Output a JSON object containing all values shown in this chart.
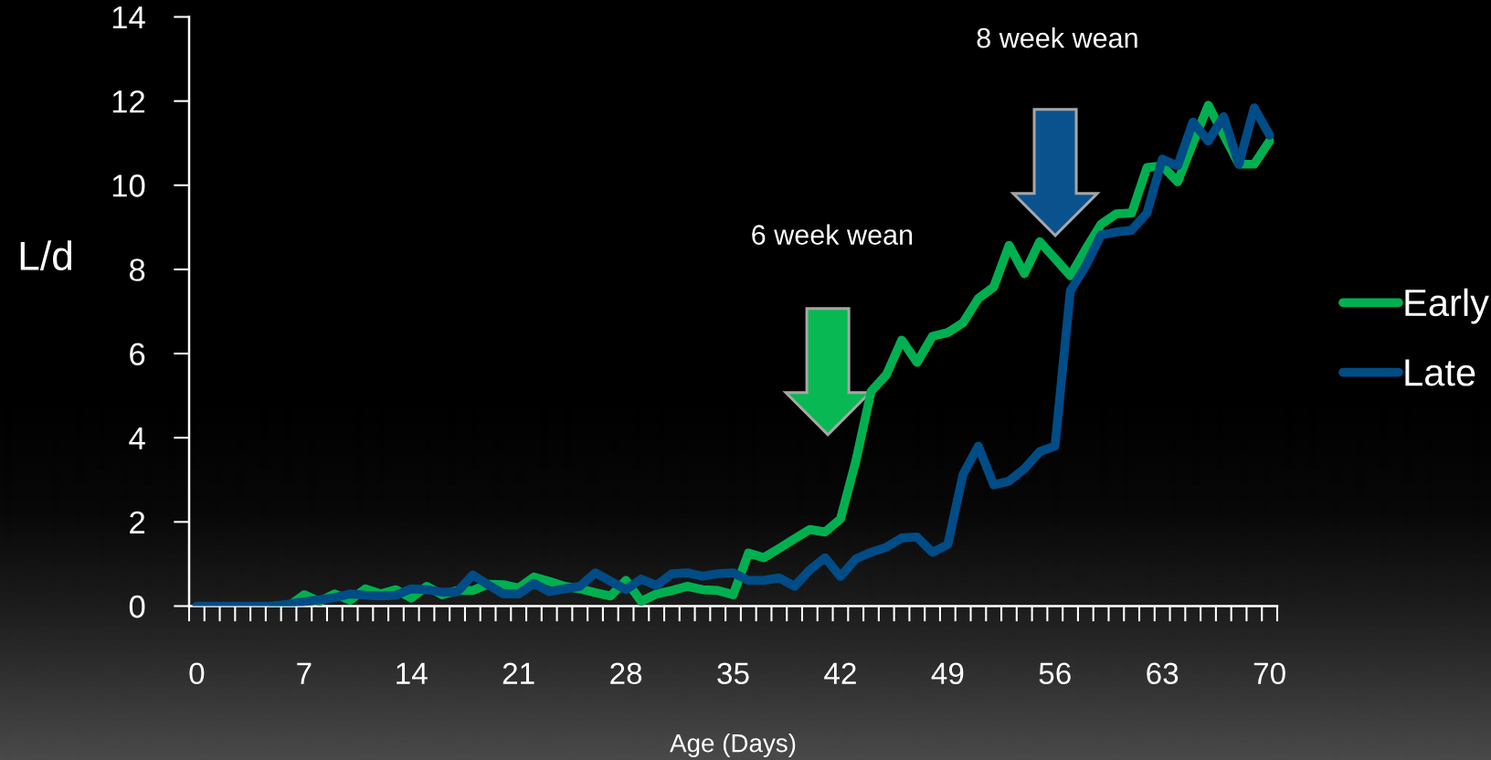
{
  "chart_data": {
    "type": "line",
    "categories": [
      "0",
      null,
      null,
      null,
      null,
      null,
      null,
      "7",
      null,
      null,
      null,
      null,
      null,
      null,
      "14",
      null,
      null,
      null,
      null,
      null,
      null,
      "21",
      null,
      null,
      null,
      null,
      null,
      null,
      "28",
      null,
      null,
      null,
      null,
      null,
      null,
      "35",
      null,
      null,
      null,
      null,
      null,
      null,
      "42",
      null,
      null,
      null,
      null,
      null,
      null,
      "49",
      null,
      null,
      null,
      null,
      null,
      null,
      "56",
      null,
      null,
      null,
      null,
      null,
      null,
      "63",
      null,
      null,
      null,
      null,
      null,
      null,
      "70"
    ],
    "series": [
      {
        "name": "Early",
        "color": "#00b050",
        "values": [
          null,
          null,
          null,
          null,
          null,
          0,
          0,
          0.27,
          0.11,
          0.29,
          0.14,
          0.41,
          0.29,
          0.39,
          0.19,
          0.47,
          0.27,
          0.37,
          0.37,
          0.52,
          0.51,
          0.43,
          0.69,
          0.59,
          0.47,
          0.41,
          0.32,
          0.24,
          0.61,
          0.11,
          0.29,
          0.37,
          0.47,
          0.39,
          0.37,
          0.27,
          1.26,
          1.15,
          1.37,
          1.6,
          1.82,
          1.76,
          2.07,
          3.44,
          5.1,
          5.5,
          6.32,
          5.79,
          6.41,
          6.5,
          6.73,
          7.31,
          7.58,
          8.57,
          7.9,
          8.66,
          8.26,
          7.85,
          8.48,
          9.07,
          9.32,
          9.34,
          10.42,
          10.46,
          10.08,
          11.0,
          11.9,
          11.2,
          10.5,
          10.5,
          11.05
        ]
      },
      {
        "name": "Late",
        "color": "#004c86",
        "values": [
          0,
          0,
          0,
          0,
          0,
          0,
          0.05,
          0.1,
          0.15,
          0.2,
          0.29,
          0.26,
          0.24,
          0.26,
          0.41,
          0.39,
          0.33,
          0.34,
          0.74,
          0.51,
          0.29,
          0.29,
          0.54,
          0.34,
          0.41,
          0.47,
          0.79,
          0.59,
          0.39,
          0.64,
          0.49,
          0.77,
          0.79,
          0.71,
          0.77,
          0.79,
          0.61,
          0.61,
          0.67,
          0.47,
          0.86,
          1.15,
          0.7,
          1.12,
          1.28,
          1.4,
          1.62,
          1.64,
          1.28,
          1.46,
          3.13,
          3.8,
          2.88,
          2.97,
          3.26,
          3.67,
          3.8,
          7.49,
          8.08,
          8.82,
          8.89,
          8.93,
          9.34,
          10.62,
          10.46,
          11.5,
          11.05,
          11.63,
          10.5,
          11.84,
          11.19
        ]
      }
    ],
    "xlabel": "Age (Days)",
    "ylabel": "L/d",
    "ylim": [
      0,
      14
    ],
    "yticks": [
      0,
      2,
      4,
      6,
      8,
      10,
      12,
      14
    ],
    "annotations": [
      "6 week wean",
      "8 week wean"
    ],
    "legend": "right",
    "grid": false,
    "marker": "none",
    "line_style": "solid"
  }
}
